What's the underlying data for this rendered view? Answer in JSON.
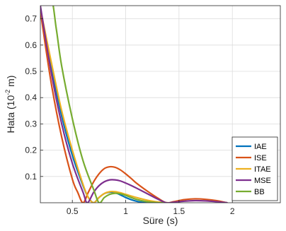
{
  "chart_data": {
    "type": "line",
    "xlabel": "Süre (s)",
    "ylabel_main": "Hata (10",
    "ylabel_sup": "-2",
    "ylabel_end": " m)",
    "xlim": [
      0.2,
      2.45
    ],
    "ylim": [
      0,
      0.75
    ],
    "xticks": [
      0.5,
      1,
      1.5,
      2
    ],
    "xtick_labels": [
      "0.5",
      "1",
      "1.5",
      "2"
    ],
    "yticks": [
      0.1,
      0.2,
      0.3,
      0.4,
      0.5,
      0.6,
      0.7
    ],
    "ytick_labels": [
      "0.1",
      "0.2",
      "0.3",
      "0.4",
      "0.5",
      "0.6",
      "0.7"
    ],
    "grid": true,
    "legend_position": "bottom-right",
    "series": [
      {
        "name": "IAE",
        "color": "#0072BD",
        "x": [
          0.2,
          0.3,
          0.4,
          0.5,
          0.6,
          0.65,
          0.7,
          0.75,
          0.8,
          0.85,
          0.9,
          0.95,
          1.0,
          1.05,
          1.1,
          1.15,
          1.2
        ],
        "y": [
          0.73,
          0.52,
          0.33,
          0.18,
          0.065,
          0.02,
          0.0,
          0.02,
          0.035,
          0.04,
          0.038,
          0.03,
          0.02,
          0.012,
          0.006,
          0.002,
          0.0
        ]
      },
      {
        "name": "ISE",
        "color": "#D95319",
        "x": [
          0.2,
          0.3,
          0.4,
          0.5,
          0.55,
          0.6,
          0.65,
          0.7,
          0.75,
          0.8,
          0.85,
          0.9,
          0.95,
          1.0,
          1.05,
          1.1,
          1.2,
          1.3,
          1.38,
          1.45,
          1.55,
          1.65,
          1.75,
          1.85,
          1.95
        ],
        "y": [
          0.73,
          0.46,
          0.25,
          0.09,
          0.04,
          0.0,
          0.04,
          0.08,
          0.11,
          0.13,
          0.137,
          0.135,
          0.125,
          0.11,
          0.093,
          0.075,
          0.045,
          0.018,
          0.0,
          0.004,
          0.012,
          0.015,
          0.013,
          0.008,
          0.0
        ]
      },
      {
        "name": "ITAE",
        "color": "#EDB120",
        "x": [
          0.2,
          0.3,
          0.4,
          0.5,
          0.6,
          0.65,
          0.7,
          0.75,
          0.8,
          0.85,
          0.9,
          0.95,
          1.0,
          1.1,
          1.2,
          1.3,
          1.4
        ],
        "y": [
          0.74,
          0.54,
          0.35,
          0.2,
          0.07,
          0.02,
          0.0,
          0.02,
          0.035,
          0.042,
          0.042,
          0.038,
          0.032,
          0.02,
          0.01,
          0.003,
          0.0
        ]
      },
      {
        "name": "MSE",
        "color": "#7E2F8E",
        "x": [
          0.2,
          0.3,
          0.4,
          0.5,
          0.6,
          0.64,
          0.7,
          0.75,
          0.8,
          0.85,
          0.9,
          0.95,
          1.0,
          1.05,
          1.1,
          1.2,
          1.3,
          1.38,
          1.45,
          1.55,
          1.65,
          1.75,
          1.85,
          1.95
        ],
        "y": [
          0.75,
          0.5,
          0.3,
          0.15,
          0.04,
          0.0,
          0.04,
          0.065,
          0.08,
          0.087,
          0.087,
          0.083,
          0.075,
          0.066,
          0.056,
          0.035,
          0.014,
          0.0,
          0.002,
          0.006,
          0.008,
          0.007,
          0.004,
          0.0
        ]
      },
      {
        "name": "BB",
        "color": "#77AC30",
        "x": [
          0.2,
          0.3,
          0.35,
          0.4,
          0.5,
          0.6,
          0.7,
          0.75,
          0.8,
          0.85,
          0.9,
          0.95,
          1.0,
          1.05,
          1.1,
          1.2,
          1.3,
          1.35
        ],
        "y": [
          0.78,
          0.78,
          0.66,
          0.52,
          0.32,
          0.16,
          0.05,
          0.0,
          0.02,
          0.032,
          0.036,
          0.034,
          0.028,
          0.02,
          0.013,
          0.004,
          0.0,
          0.0
        ]
      }
    ]
  }
}
